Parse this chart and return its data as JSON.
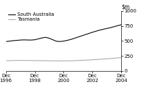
{
  "title": "",
  "ylim": [
    0,
    1000
  ],
  "yticks": [
    0,
    250,
    500,
    750,
    1000
  ],
  "xtick_labels": [
    "Dec\n1996",
    "Dec\n1998",
    "Dec\n2000",
    "Dec\n2002",
    "Dec\n2004"
  ],
  "xtick_positions": [
    0,
    8,
    16,
    24,
    32
  ],
  "sa_color": "#000000",
  "tas_color": "#aaaaaa",
  "legend_labels": [
    "South Australia",
    "Tasmania"
  ],
  "sa_values": [
    490,
    497,
    505,
    510,
    515,
    518,
    516,
    515,
    520,
    535,
    550,
    560,
    545,
    520,
    495,
    490,
    498,
    510,
    525,
    545,
    565,
    585,
    605,
    625,
    645,
    663,
    680,
    695,
    708,
    722,
    738,
    755,
    770
  ],
  "tas_values": [
    170,
    172,
    174,
    175,
    176,
    176,
    175,
    174,
    173,
    172,
    172,
    171,
    170,
    169,
    168,
    168,
    168,
    169,
    170,
    172,
    174,
    177,
    180,
    183,
    187,
    191,
    195,
    199,
    203,
    207,
    212,
    218,
    224
  ],
  "n_points": 33
}
